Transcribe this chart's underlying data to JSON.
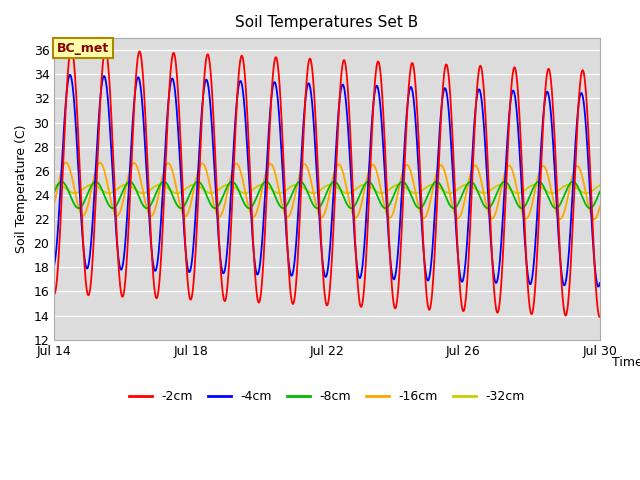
{
  "title": "Soil Temperatures Set B",
  "xlabel": "Time",
  "ylabel": "Soil Temperature (C)",
  "ylim": [
    12,
    37
  ],
  "yticks": [
    12,
    14,
    16,
    18,
    20,
    22,
    24,
    26,
    28,
    30,
    32,
    34,
    36
  ],
  "annotation_text": "BC_met",
  "annotation_color": "#8B0000",
  "annotation_bg": "#FFFFAA",
  "fig_bg_color": "#DCDCDC",
  "plot_bg": "#DCDCDC",
  "colors": {
    "-2cm": "#FF0000",
    "-4cm": "#0000FF",
    "-8cm": "#00BB00",
    "-16cm": "#FFA500",
    "-32cm": "#CCCC00"
  },
  "linewidth": 1.3,
  "num_days": 17,
  "samples_per_day": 240,
  "depth_params": {
    "-2cm": {
      "mean": 26.0,
      "amp": 10.2,
      "phase": 0.0,
      "trend": -0.12
    },
    "-4cm": {
      "mean": 26.0,
      "amp": 8.0,
      "phase": 0.25,
      "trend": -0.1
    },
    "-8cm": {
      "mean": 24.0,
      "amp": 1.1,
      "phase": 1.8,
      "trend": 0.0
    },
    "-16cm": {
      "mean": 24.5,
      "amp": 2.2,
      "phase": 1.0,
      "trend": -0.02
    },
    "-32cm": {
      "mean": 24.5,
      "amp": 0.35,
      "phase": 2.5,
      "trend": 0.0
    }
  },
  "xtick_positions": [
    0,
    4,
    8,
    12,
    16
  ],
  "xtick_labels": [
    "Jul 14",
    "Jul 18",
    "Jul 22",
    "Jul 26",
    "Jul 30"
  ]
}
